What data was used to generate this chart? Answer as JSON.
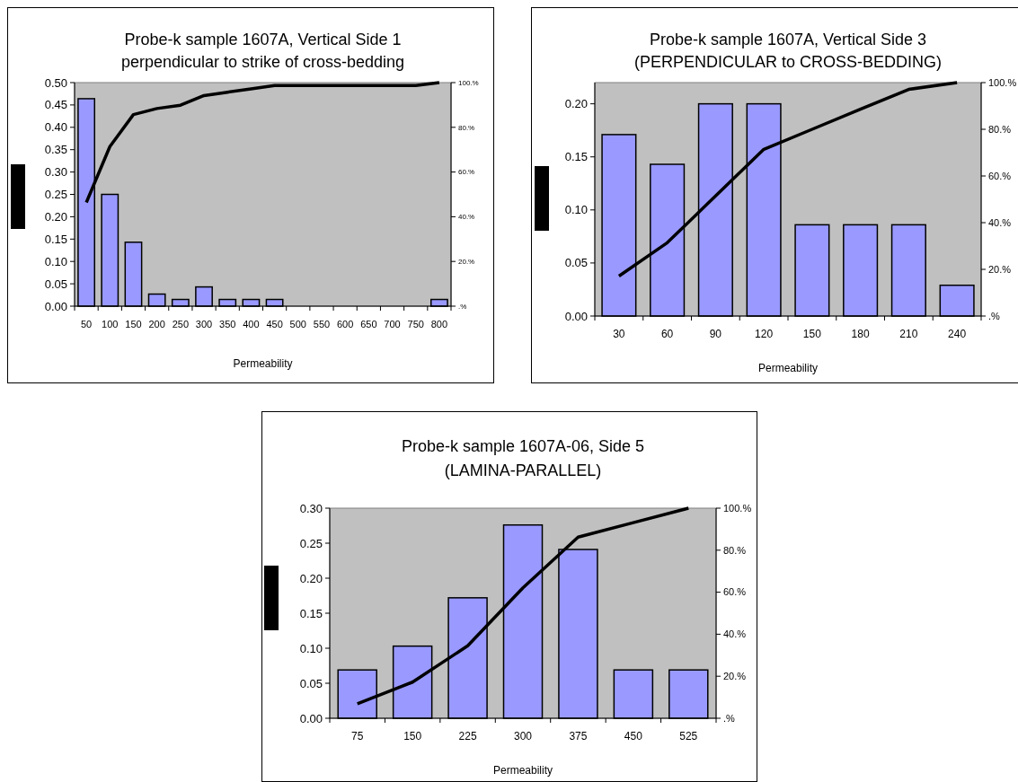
{
  "chart_data": [
    {
      "type": "bar",
      "title": "Probe-k sample 1607A, Vertical Side 1\nperpendicular to strike of cross-bedding",
      "xlabel": "Permeability",
      "categories": [
        "50",
        "100",
        "150",
        "200",
        "250",
        "300",
        "350",
        "400",
        "450",
        "500",
        "550",
        "600",
        "650",
        "700",
        "750",
        "800"
      ],
      "series": [
        {
          "color": "#9999ff",
          "values": [
            0.464,
            0.25,
            0.143,
            0.027,
            0.015,
            0.043,
            0.015,
            0.015,
            0.015,
            0,
            0,
            0,
            0,
            0,
            0,
            0.015
          ]
        },
        {
          "type": "line",
          "color": "#000000",
          "axis": "y2",
          "values": [
            46.4,
            71.4,
            85.7,
            88.4,
            89.9,
            94.2,
            95.7,
            97.2,
            98.7,
            98.7,
            98.7,
            98.7,
            98.7,
            98.7,
            98.7,
            100
          ]
        }
      ],
      "ylim": [
        0,
        0.5
      ],
      "yticks": [
        {
          "value": 0,
          "label": "0.00"
        },
        {
          "value": 0.05,
          "label": "0.05"
        },
        {
          "value": 0.1,
          "label": "0.10"
        },
        {
          "value": 0.15,
          "label": "0.15"
        },
        {
          "value": 0.2,
          "label": "0.20"
        },
        {
          "value": 0.25,
          "label": "0.25"
        },
        {
          "value": 0.3,
          "label": "0.30"
        },
        {
          "value": 0.35,
          "label": "0.35"
        },
        {
          "value": 0.4,
          "label": "0.40"
        },
        {
          "value": 0.45,
          "label": "0.45"
        },
        {
          "value": 0.5,
          "label": "0.50"
        }
      ],
      "y2lim": [
        0,
        100
      ],
      "y2ticks": [
        {
          "value": 0,
          "label": ".%"
        },
        {
          "value": 20,
          "label": "20.%"
        },
        {
          "value": 40,
          "label": "40.%"
        },
        {
          "value": 60,
          "label": "60.%"
        },
        {
          "value": 80,
          "label": "80.%"
        },
        {
          "value": 100,
          "label": "100.%"
        }
      ],
      "grid": false
    },
    {
      "type": "bar",
      "title": "Probe-k sample 1607A, Vertical Side 3\n(PERPENDICULAR to CROSS-BEDDING)",
      "xlabel": "Permeability",
      "categories": [
        "30",
        "60",
        "90",
        "120",
        "150",
        "180",
        "210",
        "240"
      ],
      "series": [
        {
          "color": "#9999ff",
          "values": [
            0.171,
            0.143,
            0.2,
            0.2,
            0.086,
            0.086,
            0.086,
            0.029
          ]
        },
        {
          "type": "line",
          "color": "#000000",
          "axis": "y2",
          "values": [
            17.1,
            31.4,
            51.4,
            71.4,
            80,
            88.6,
            97.1,
            100
          ]
        }
      ],
      "ylim": [
        0,
        0.22
      ],
      "yticks": [
        {
          "value": 0,
          "label": "0.00"
        },
        {
          "value": 0.05,
          "label": "0.05"
        },
        {
          "value": 0.1,
          "label": "0.10"
        },
        {
          "value": 0.15,
          "label": "0.15"
        },
        {
          "value": 0.2,
          "label": "0.20"
        }
      ],
      "y2lim": [
        0,
        100
      ],
      "y2ticks": [
        {
          "value": 0,
          "label": ".%"
        },
        {
          "value": 20,
          "label": "20.%"
        },
        {
          "value": 40,
          "label": "40.%"
        },
        {
          "value": 60,
          "label": "60.%"
        },
        {
          "value": 80,
          "label": "80.%"
        },
        {
          "value": 100,
          "label": "100.%"
        }
      ],
      "grid": false
    },
    {
      "type": "bar",
      "title": "Probe-k sample 1607A-06, Side 5\n(LAMINA-PARALLEL)",
      "xlabel": "Permeability",
      "categories": [
        "75",
        "150",
        "225",
        "300",
        "375",
        "450",
        "525"
      ],
      "series": [
        {
          "color": "#9999ff",
          "values": [
            0.069,
            0.103,
            0.172,
            0.276,
            0.241,
            0.069,
            0.069
          ]
        },
        {
          "type": "line",
          "color": "#000000",
          "axis": "y2",
          "values": [
            6.9,
            17.2,
            34.5,
            62.1,
            86.2,
            93.1,
            100
          ]
        }
      ],
      "ylim": [
        0,
        0.3
      ],
      "yticks": [
        {
          "value": 0,
          "label": "0.00"
        },
        {
          "value": 0.05,
          "label": "0.05"
        },
        {
          "value": 0.1,
          "label": "0.10"
        },
        {
          "value": 0.15,
          "label": "0.15"
        },
        {
          "value": 0.2,
          "label": "0.20"
        },
        {
          "value": 0.25,
          "label": "0.25"
        },
        {
          "value": 0.3,
          "label": "0.30"
        }
      ],
      "y2lim": [
        0,
        100
      ],
      "y2ticks": [
        {
          "value": 0,
          "label": ".%"
        },
        {
          "value": 20,
          "label": "20.%"
        },
        {
          "value": 40,
          "label": "40.%"
        },
        {
          "value": 60,
          "label": "60.%"
        },
        {
          "value": 80,
          "label": "80.%"
        },
        {
          "value": 100,
          "label": "100.%"
        }
      ],
      "grid": false
    }
  ]
}
